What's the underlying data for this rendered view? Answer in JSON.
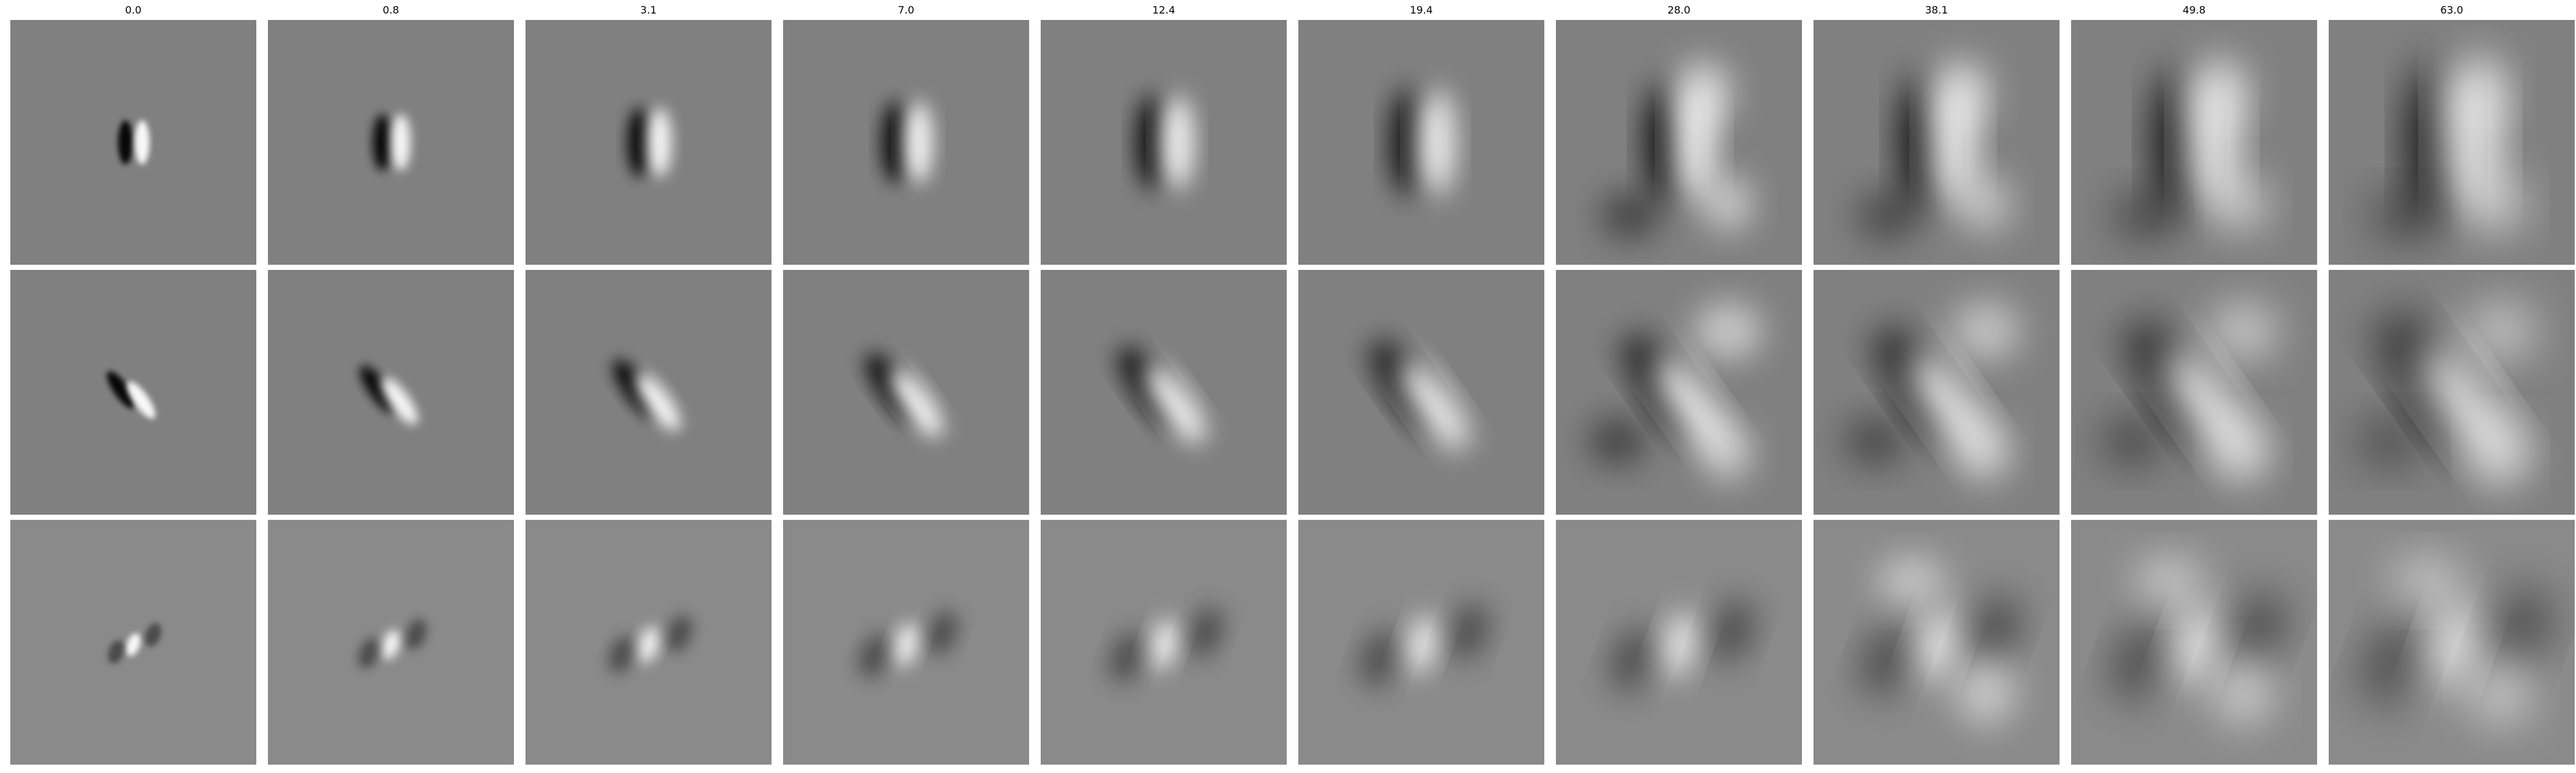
{
  "panel_grid": {
    "rows": 3,
    "columns": [
      {
        "label": "0.0"
      },
      {
        "label": "0.8"
      },
      {
        "label": "3.1"
      },
      {
        "label": "7.0"
      },
      {
        "label": "12.4"
      },
      {
        "label": "19.4"
      },
      {
        "label": "28.0"
      },
      {
        "label": "38.1"
      },
      {
        "label": "49.8"
      },
      {
        "label": "63.0"
      }
    ],
    "colormap": "gray",
    "background_gray": "#808080"
  }
}
